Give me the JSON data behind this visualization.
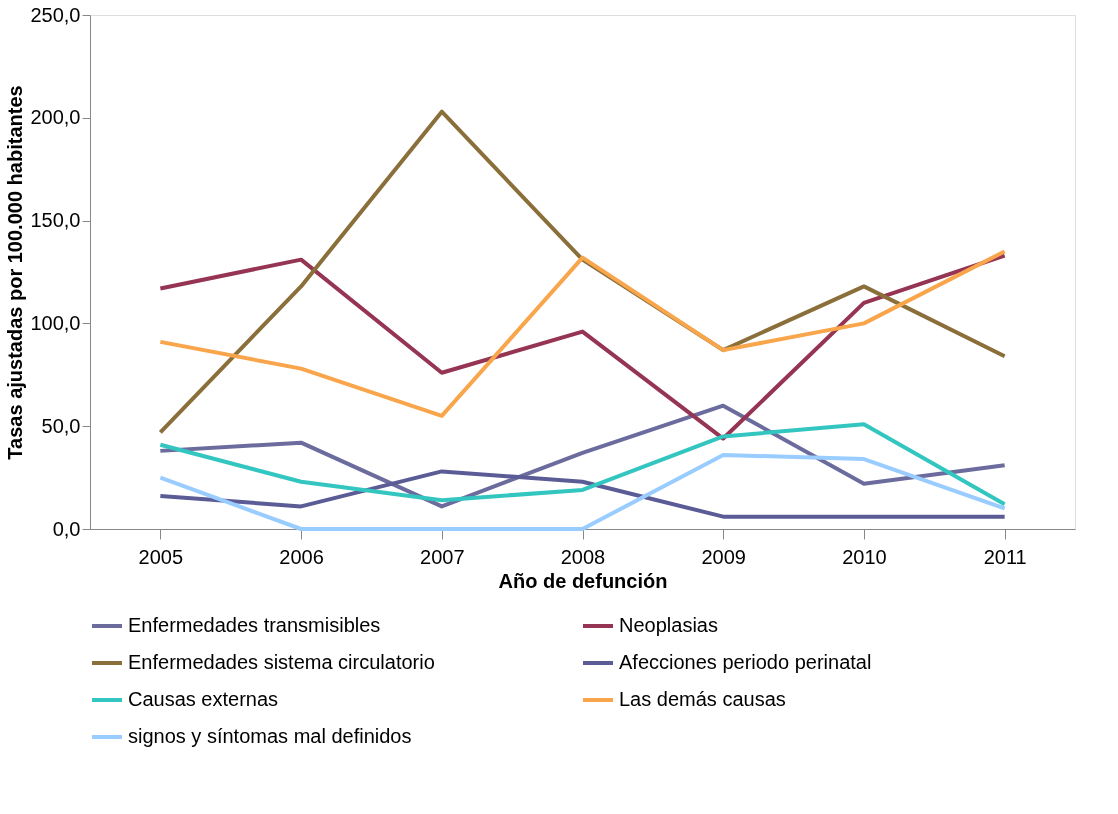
{
  "chart_data": {
    "type": "line",
    "xlabel": "Año de defunción",
    "ylabel": "Tasas ajustadas por 100.000 habitantes",
    "categories": [
      "2005",
      "2006",
      "2007",
      "2008",
      "2009",
      "2010",
      "2011"
    ],
    "ylim": [
      0,
      250
    ],
    "yticks": [
      {
        "value": 0,
        "label": "0,0"
      },
      {
        "value": 50,
        "label": "50,0"
      },
      {
        "value": 100,
        "label": "100,0"
      },
      {
        "value": 150,
        "label": "150,0"
      },
      {
        "value": 200,
        "label": "200,0"
      },
      {
        "value": 250,
        "label": "250,0"
      }
    ],
    "grid": false,
    "legend": "bottom",
    "marker": "none",
    "line_style": "solid",
    "series": [
      {
        "name": "Enfermedades transmisibles",
        "color": "#6b6b9e",
        "values": [
          38,
          42,
          11,
          37,
          60,
          22,
          31
        ]
      },
      {
        "name": "Neoplasias",
        "color": "#953553",
        "values": [
          117,
          131,
          76,
          96,
          44,
          110,
          133
        ]
      },
      {
        "name": "Enfermedades sistema circulatorio",
        "color": "#8b6f3a",
        "values": [
          47,
          118,
          203,
          131,
          87,
          118,
          84
        ]
      },
      {
        "name": "Afecciones periodo perinatal",
        "color": "#5b5b96",
        "values": [
          16,
          11,
          28,
          23,
          6,
          6,
          6
        ]
      },
      {
        "name": "Causas externas",
        "color": "#33c6c0",
        "values": [
          41,
          23,
          14,
          19,
          45,
          51,
          12
        ]
      },
      {
        "name": "Las demás causas",
        "color": "#f9a54b",
        "values": [
          91,
          78,
          55,
          132,
          87,
          100,
          135
        ]
      },
      {
        "name": "signos y síntomas mal definidos",
        "color": "#99ccff",
        "values": [
          25,
          0,
          0,
          0,
          36,
          34,
          10
        ]
      }
    ]
  }
}
